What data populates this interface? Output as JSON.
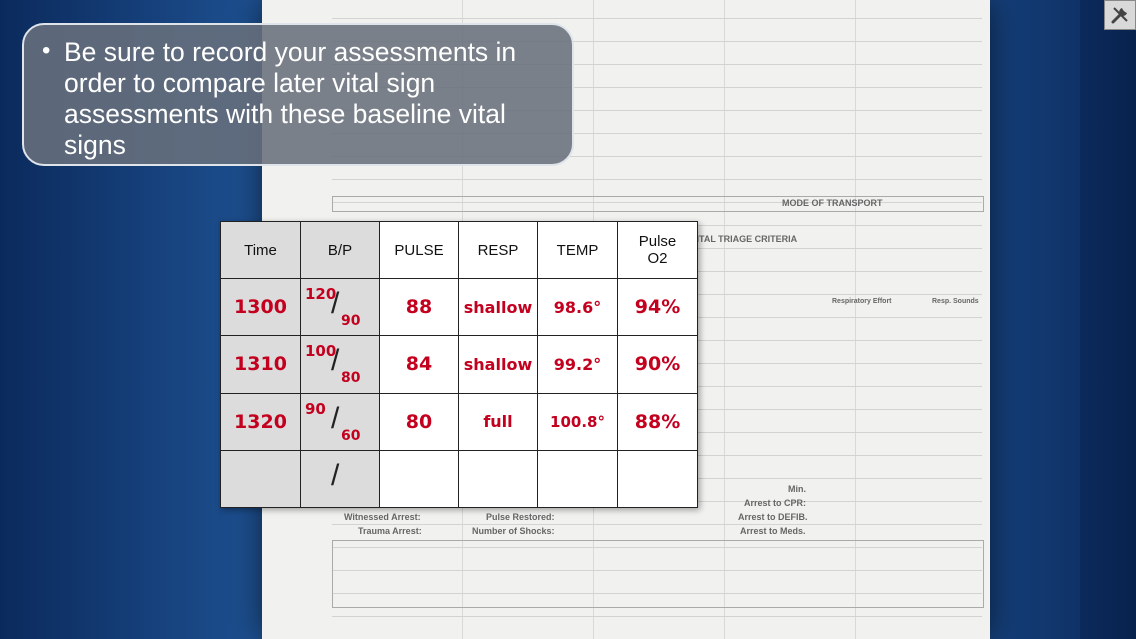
{
  "callout": {
    "bullet": "•",
    "text": "Be sure to record your assessments in order to compare later vital sign assessments with these baseline vital signs"
  },
  "background_form": {
    "transport_title": "MODE OF TRANSPORT",
    "triage_title": "RITAL TRIAGE CRITERIA",
    "resp_effort": "Respiratory Effort",
    "resp_sounds": "Resp. Sounds",
    "min_label": "Min.",
    "arrest_cpr": "Arrest to CPR:",
    "arrest_defib": "Arrest to DEFIB.",
    "arrest_meds": "Arrest to Meds.",
    "witnessed_arrest": "Witnessed Arrest:",
    "pulse_restored": "Pulse Restored:",
    "trauma_arrest": "Trauma Arrest:",
    "num_shocks": "Number of Shocks:"
  },
  "vitals_table": {
    "headers": [
      "Time",
      "B/P",
      "PULSE",
      "RESP",
      "TEMP",
      "Pulse O2"
    ],
    "rows": [
      {
        "time": "1300",
        "bp_sys": "120",
        "bp_slash": "/",
        "bp_dia": "90",
        "pulse": "88",
        "resp": "shallow",
        "temp": "98.6°",
        "o2": "94%"
      },
      {
        "time": "1310",
        "bp_sys": "100",
        "bp_slash": "/",
        "bp_dia": "80",
        "pulse": "84",
        "resp": "shallow",
        "temp": "99.2°",
        "o2": "90%"
      },
      {
        "time": "1320",
        "bp_sys": "90",
        "bp_slash": "/",
        "bp_dia": "60",
        "pulse": "80",
        "resp": "full",
        "temp": "100.8°",
        "o2": "88%"
      },
      {
        "time": "",
        "bp_sys": "",
        "bp_slash": "/",
        "bp_dia": "",
        "pulse": "",
        "resp": "",
        "temp": "",
        "o2": ""
      }
    ]
  },
  "toolbar": {
    "tools_icon": "tools-icon"
  },
  "colors": {
    "handwriting": "#c4001f",
    "callout_bg": "#68707c",
    "background": "#1d4f8f"
  }
}
